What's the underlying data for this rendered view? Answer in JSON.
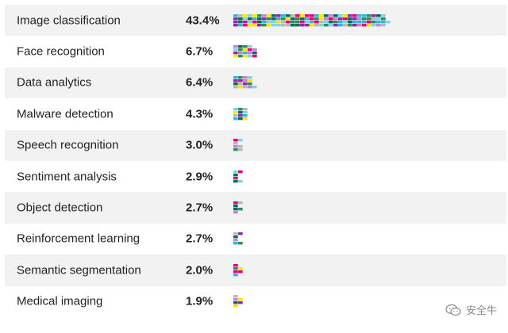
{
  "chart_data": {
    "type": "bar",
    "orientation": "horizontal",
    "categories": [
      "Image classification",
      "Face recognition",
      "Data analytics",
      "Malware detection",
      "Speech recognition",
      "Sentiment analysis",
      "Object detection",
      "Reinforcement learning",
      "Semantic segmentation",
      "Medical imaging"
    ],
    "values": [
      43.4,
      6.7,
      6.4,
      4.3,
      3.0,
      2.9,
      2.7,
      2.7,
      2.0,
      1.9
    ],
    "value_labels": [
      "43.4%",
      "6.7%",
      "6.4%",
      "4.3%",
      "3.0%",
      "2.9%",
      "2.7%",
      "2.7%",
      "2.0%",
      "1.9%"
    ],
    "xlim": [
      0,
      43.4
    ],
    "grid": false,
    "legend": "none"
  },
  "colors": {
    "palette": [
      "#7fd3e6",
      "#c87fd6",
      "#ffe400",
      "#8e2aa8",
      "#e8007a",
      "#2fb5d8",
      "#2d8e5a",
      "#0a6a5a",
      "#b8b8b8"
    ],
    "row_shade": "#f2f2f2",
    "text": "#222222"
  },
  "watermark": {
    "icon": "wechat-icon",
    "text": "安全牛"
  }
}
